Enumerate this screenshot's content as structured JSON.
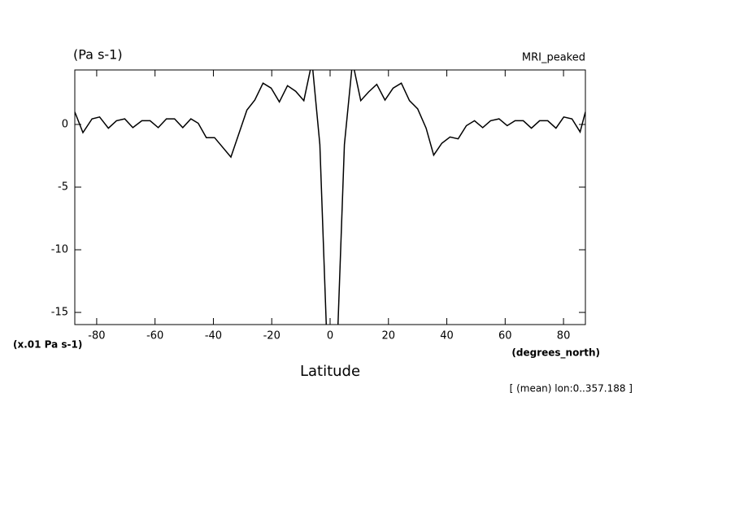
{
  "chart_data": {
    "type": "line",
    "title": "MRI_peaked",
    "y_units": "(Pa s-1)",
    "y_scale_note": "(x.01 Pa s-1)",
    "x_units": "(degrees_north)",
    "xlabel": "Latitude",
    "annotation": "[ (mean) lon:0..357.188 ]",
    "x": [
      -87.5,
      -84.7,
      -81.6,
      -79,
      -76,
      -73.2,
      -70.4,
      -67.6,
      -64.5,
      -61.7,
      -58.9,
      -56.1,
      -53.3,
      -50.5,
      -47.7,
      -45.2,
      -42.4,
      -39.6,
      -34,
      -28.5,
      -25.8,
      -23,
      -20.2,
      -17.4,
      -14.6,
      -11.8,
      -9,
      -6.2,
      -3.5,
      -0.7,
      2.1,
      4.9,
      7.7,
      10.5,
      13.2,
      16,
      18.8,
      21.6,
      24.4,
      27.2,
      30,
      32.9,
      35.5,
      38.3,
      41.1,
      43.9,
      46.7,
      49.5,
      52.3,
      55,
      57.9,
      60.7,
      63.4,
      66.2,
      69,
      71.8,
      74.6,
      77.4,
      80.1,
      82.9,
      85.7,
      87.5
    ],
    "series": [
      {
        "color": "#000000",
        "values": [
          1.0,
          -0.65,
          0.45,
          0.6,
          -0.3,
          0.3,
          0.45,
          -0.25,
          0.3,
          0.3,
          -0.25,
          0.45,
          0.45,
          -0.25,
          0.45,
          0.1,
          -1.05,
          -1.05,
          -2.6,
          1.15,
          1.95,
          3.3,
          2.9,
          1.8,
          3.1,
          2.65,
          1.9,
          5,
          -1.6,
          -20,
          -20,
          -1.6,
          5,
          1.9,
          2.6,
          3.2,
          1.95,
          2.9,
          3.3,
          1.9,
          1.25,
          -0.3,
          -2.45,
          -1.5,
          -1.0,
          -1.15,
          -0.1,
          0.3,
          -0.25,
          0.3,
          0.45,
          -0.1,
          0.3,
          0.3,
          -0.3,
          0.3,
          0.3,
          -0.3,
          0.6,
          0.45,
          -0.6,
          1.0
        ]
      }
    ],
    "xlim": [
      -87.5,
      87.5
    ],
    "ylim": [
      -15.97,
      4.35
    ],
    "xticks": [
      -80,
      -60,
      -40,
      -20,
      0,
      20,
      40,
      60,
      80
    ],
    "yticks": [
      -15,
      -10,
      -5,
      0
    ]
  }
}
